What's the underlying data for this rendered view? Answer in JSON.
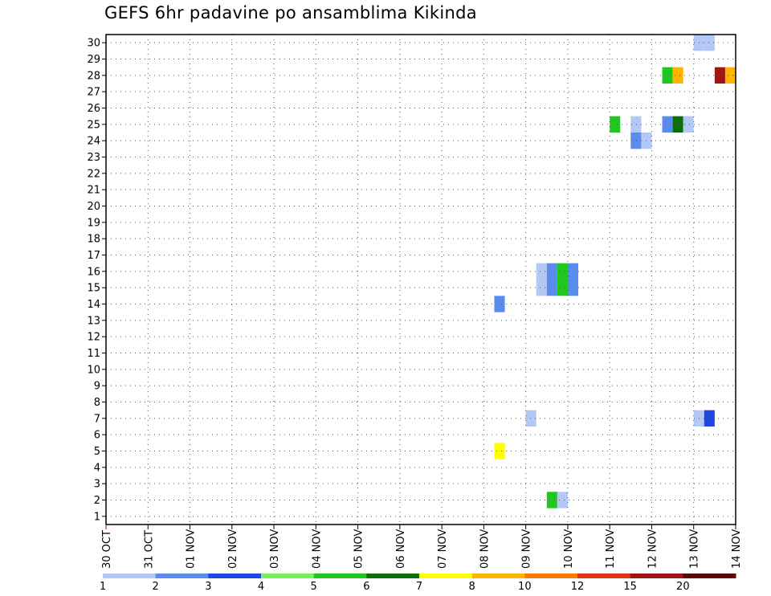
{
  "chart_data": {
    "type": "heatmap",
    "title": "GEFS 6hr padavine po ansamblima Kikinda",
    "xlabel": "",
    "ylabel": "",
    "x_tick_labels": [
      "30 OCT",
      "31 OCT",
      "01 NOV",
      "02 NOV",
      "03 NOV",
      "04 NOV",
      "05 NOV",
      "06 NOV",
      "07 NOV",
      "08 NOV",
      "09 NOV",
      "10 NOV",
      "11 NOV",
      "12 NOV",
      "13 NOV",
      "14 NOV"
    ],
    "y_tick_labels": [
      "1",
      "2",
      "3",
      "4",
      "5",
      "6",
      "7",
      "8",
      "9",
      "10",
      "11",
      "12",
      "13",
      "14",
      "15",
      "16",
      "17",
      "18",
      "19",
      "20",
      "21",
      "22",
      "23",
      "24",
      "25",
      "26",
      "27",
      "28",
      "29",
      "30"
    ],
    "x_range_days": [
      0,
      15
    ],
    "y_range": [
      0.5,
      30.5
    ],
    "grid": true,
    "colorbar": {
      "position": "bottom",
      "labels": [
        "1",
        "2",
        "3",
        "4",
        "5",
        "6",
        "7",
        "8",
        "10",
        "12",
        "15",
        "20"
      ],
      "colors": [
        "#b4c8f5",
        "#5a8cf0",
        "#1e46e6",
        "#78f05a",
        "#1ec81e",
        "#0a6e0a",
        "#ffff00",
        "#ffb400",
        "#ff7800",
        "#e63214",
        "#a01414",
        "#5a0a0a"
      ]
    },
    "cells": [
      {
        "member": 30,
        "day": 14.0,
        "value": 1
      },
      {
        "member": 30,
        "day": 14.25,
        "value": 1
      },
      {
        "member": 28,
        "day": 13.25,
        "value": 5
      },
      {
        "member": 28,
        "day": 13.5,
        "value": 8
      },
      {
        "member": 28,
        "day": 14.5,
        "value": 15
      },
      {
        "member": 28,
        "day": 14.75,
        "value": 8
      },
      {
        "member": 25,
        "day": 12.0,
        "value": 5
      },
      {
        "member": 25,
        "day": 12.5,
        "value": 1
      },
      {
        "member": 25,
        "day": 13.25,
        "value": 2
      },
      {
        "member": 25,
        "day": 13.5,
        "value": 6
      },
      {
        "member": 25,
        "day": 13.75,
        "value": 1
      },
      {
        "member": 24,
        "day": 12.5,
        "value": 2
      },
      {
        "member": 24,
        "day": 12.75,
        "value": 1
      },
      {
        "member": 16,
        "day": 10.25,
        "value": 1
      },
      {
        "member": 16,
        "day": 10.5,
        "value": 2
      },
      {
        "member": 16,
        "day": 10.75,
        "value": 5
      },
      {
        "member": 16,
        "day": 11.0,
        "value": 2
      },
      {
        "member": 15,
        "day": 10.25,
        "value": 1
      },
      {
        "member": 15,
        "day": 10.5,
        "value": 2
      },
      {
        "member": 15,
        "day": 10.75,
        "value": 5
      },
      {
        "member": 15,
        "day": 11.0,
        "value": 2
      },
      {
        "member": 14,
        "day": 9.25,
        "value": 2
      },
      {
        "member": 7,
        "day": 10.0,
        "value": 1
      },
      {
        "member": 7,
        "day": 14.0,
        "value": 1
      },
      {
        "member": 7,
        "day": 14.25,
        "value": 3
      },
      {
        "member": 5,
        "day": 9.25,
        "value": 7
      },
      {
        "member": 2,
        "day": 10.5,
        "value": 5
      },
      {
        "member": 2,
        "day": 10.75,
        "value": 1
      }
    ]
  }
}
